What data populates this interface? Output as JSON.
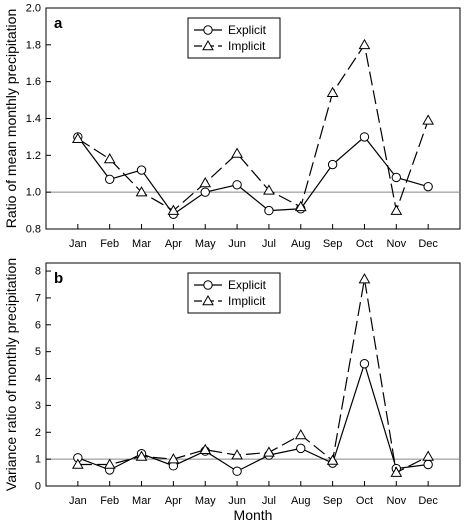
{
  "chart_data": [
    {
      "type": "line",
      "panel_label": "a",
      "title": "",
      "xlabel": "",
      "ylabel": "Ratio of mean monthly precipitation",
      "categories": [
        "Jan",
        "Feb",
        "Mar",
        "Apr",
        "May",
        "Jun",
        "Jul",
        "Aug",
        "Sep",
        "Oct",
        "Nov",
        "Dec"
      ],
      "ylim": [
        0.8,
        2.0
      ],
      "yticks": [
        0.8,
        1.0,
        1.2,
        1.4,
        1.6,
        1.8,
        2.0
      ],
      "ytick_labels": [
        "0.8",
        "1.0",
        "1.2",
        "1.4",
        "1.6",
        "1.8",
        "2.0"
      ],
      "reference_line": 1.0,
      "grid": false,
      "legend_position": "top-center",
      "series": [
        {
          "name": "Explicit",
          "marker": "circle",
          "line": "solid",
          "values": [
            1.3,
            1.07,
            1.12,
            0.88,
            1.0,
            1.04,
            0.9,
            0.91,
            1.15,
            1.3,
            1.08,
            1.03
          ]
        },
        {
          "name": "Implicit",
          "marker": "triangle",
          "line": "dashed",
          "values": [
            1.29,
            1.18,
            1.0,
            0.9,
            1.05,
            1.21,
            1.01,
            0.92,
            1.54,
            1.8,
            0.9,
            1.39
          ]
        }
      ]
    },
    {
      "type": "line",
      "panel_label": "b",
      "title": "",
      "xlabel": "Month",
      "ylabel": "Variance ratio of monthly precipitation",
      "categories": [
        "Jan",
        "Feb",
        "Mar",
        "Apr",
        "May",
        "Jun",
        "Jul",
        "Aug",
        "Sep",
        "Oct",
        "Nov",
        "Dec"
      ],
      "ylim": [
        0,
        8.3
      ],
      "yticks": [
        0,
        1,
        2,
        3,
        4,
        5,
        6,
        7,
        8
      ],
      "ytick_labels": [
        "0",
        "1",
        "2",
        "3",
        "4",
        "5",
        "6",
        "7",
        "8"
      ],
      "reference_line": 1.0,
      "grid": false,
      "legend_position": "top-center",
      "series": [
        {
          "name": "Explicit",
          "marker": "circle",
          "line": "solid",
          "values": [
            1.05,
            0.6,
            1.2,
            0.75,
            1.3,
            0.55,
            1.15,
            1.4,
            0.85,
            4.55,
            0.65,
            0.8
          ]
        },
        {
          "name": "Implicit",
          "marker": "triangle",
          "line": "dashed",
          "values": [
            0.8,
            0.8,
            1.1,
            1.0,
            1.35,
            1.15,
            1.25,
            1.9,
            0.95,
            7.7,
            0.5,
            1.1
          ]
        }
      ]
    }
  ]
}
